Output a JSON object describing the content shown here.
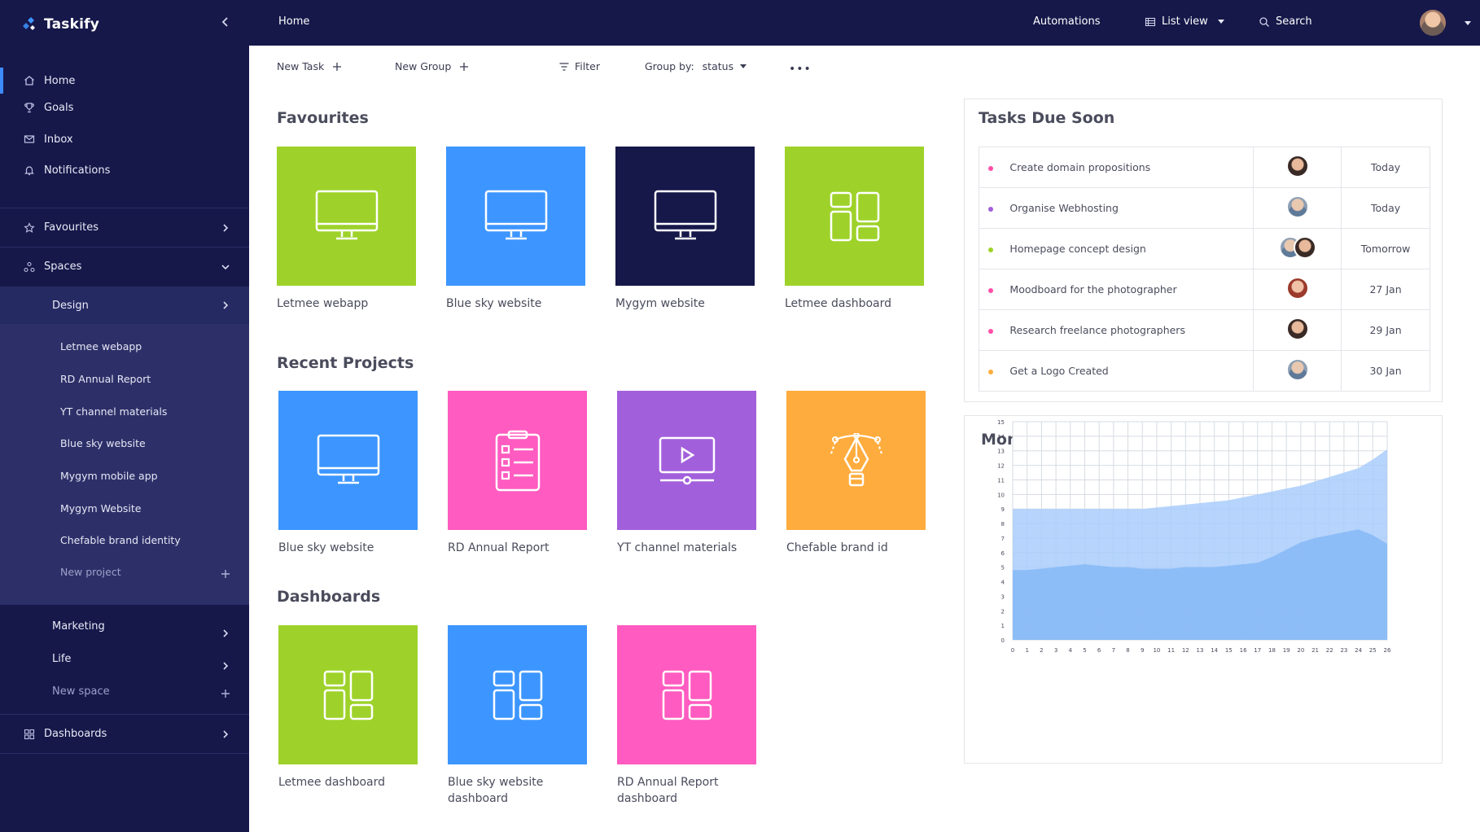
{
  "app": {
    "name": "Taskify"
  },
  "sidebar": {
    "nav": [
      {
        "label": "Home",
        "icon": "home-icon",
        "active": true
      },
      {
        "label": "Goals",
        "icon": "trophy-icon",
        "active": false
      },
      {
        "label": "Inbox",
        "icon": "mail-icon",
        "active": false
      },
      {
        "label": "Notifications",
        "icon": "bell-icon",
        "active": false
      }
    ],
    "favourites_label": "Favourites",
    "spaces_label": "Spaces",
    "design_label": "Design",
    "projects": [
      "Letmee webapp",
      "RD Annual Report",
      "YT channel materials",
      "Blue sky website",
      "Mygym mobile app",
      "Mygym Website",
      "Chefable brand identity"
    ],
    "new_project_label": "New project",
    "marketing_label": "Marketing",
    "life_label": "Life",
    "new_space_label": "New space",
    "dashboards_label": "Dashboards"
  },
  "topbar": {
    "title": "Home",
    "automations": "Automations",
    "view": "List view",
    "search": "Search"
  },
  "toolbar": {
    "new_task": "New Task",
    "new_group": "New Group",
    "filter": "Filter",
    "group_by_label": "Group by:",
    "group_by_value": "status"
  },
  "favourites": {
    "title": "Favourites",
    "items": [
      {
        "label": "Letmee webapp",
        "color": "#9ed22a",
        "icon": "monitor-icon"
      },
      {
        "label": "Blue sky website",
        "color": "#3d96ff",
        "icon": "monitor-icon"
      },
      {
        "label": "Mygym website",
        "color": "#16184a",
        "icon": "monitor-icon"
      },
      {
        "label": "Letmee dashboard",
        "color": "#9ed22a",
        "icon": "dashboard-icon"
      }
    ]
  },
  "recent": {
    "title": "Recent Projects",
    "items": [
      {
        "label": "Blue sky website",
        "color": "#3d96ff",
        "icon": "monitor-icon"
      },
      {
        "label": "RD Annual Report",
        "color": "#ff5bc0",
        "icon": "checklist-icon"
      },
      {
        "label": "YT channel materials",
        "color": "#a25fdb",
        "icon": "video-icon"
      },
      {
        "label": "Chefable brand id",
        "color": "#ffac3e",
        "icon": "pen-tool-icon"
      }
    ]
  },
  "dashboards": {
    "title": "Dashboards",
    "items": [
      {
        "label": "Letmee dashboard",
        "color": "#9ed22a",
        "icon": "dashboard-icon"
      },
      {
        "label": "Blue sky website dashboard",
        "color": "#3d96ff",
        "icon": "dashboard-icon"
      },
      {
        "label": "RD Annual Report dashboard",
        "color": "#ff5bc0",
        "icon": "dashboard-icon"
      }
    ]
  },
  "tasks": {
    "title": "Tasks Due Soon",
    "rows": [
      {
        "name": "Create domain propositions",
        "due": "Today",
        "dot": "#ff4fa8",
        "avatars": [
          "avatar-female"
        ]
      },
      {
        "name": "Organise Webhosting",
        "due": "Today",
        "dot": "#a25fdb",
        "avatars": [
          "avatar-male"
        ]
      },
      {
        "name": "Homepage concept design",
        "due": "Tomorrow",
        "dot": "#9ed22a",
        "avatars": [
          "avatar-male",
          "avatar-female"
        ]
      },
      {
        "name": "Moodboard for the photographer",
        "due": "27 Jan",
        "dot": "#ff4fa8",
        "avatars": [
          "avatar-redhead"
        ]
      },
      {
        "name": "Research freelance photographers",
        "due": "29 Jan",
        "dot": "#ff4fa8",
        "avatars": [
          "avatar-female"
        ]
      },
      {
        "name": "Get a Logo Created",
        "due": "30 Jan",
        "dot": "#ffac3e",
        "avatars": [
          "avatar-male"
        ]
      }
    ]
  },
  "chart_data": {
    "type": "area",
    "title": "Monthly Overview",
    "x": [
      0,
      1,
      2,
      3,
      4,
      5,
      6,
      7,
      8,
      9,
      10,
      11,
      12,
      13,
      14,
      15,
      16,
      17,
      18,
      19,
      20,
      21,
      22,
      23,
      24,
      25,
      26
    ],
    "xlim": [
      0,
      26
    ],
    "ylim": [
      0,
      15
    ],
    "yticks": [
      0,
      1,
      2,
      3,
      4,
      5,
      6,
      7,
      8,
      9,
      10,
      11,
      12,
      13,
      14,
      15
    ],
    "grid": true,
    "series": [
      {
        "values": [
          9,
          9,
          9,
          9,
          9,
          9,
          9,
          9,
          9,
          9,
          9.1,
          9.2,
          9.3,
          9.4,
          9.5,
          9.6,
          9.8,
          10,
          10.2,
          10.4,
          10.6,
          10.9,
          11.2,
          11.5,
          11.8,
          12.4,
          13.1
        ],
        "color": "#a9cdfb"
      },
      {
        "values": [
          4.8,
          4.8,
          4.9,
          5,
          5.1,
          5.2,
          5.1,
          5,
          5,
          4.9,
          4.9,
          4.9,
          5,
          5,
          5,
          5.1,
          5.2,
          5.3,
          5.7,
          6.2,
          6.7,
          7,
          7.2,
          7.4,
          7.6,
          7.2,
          6.6
        ],
        "color": "#86b8f6"
      }
    ]
  }
}
